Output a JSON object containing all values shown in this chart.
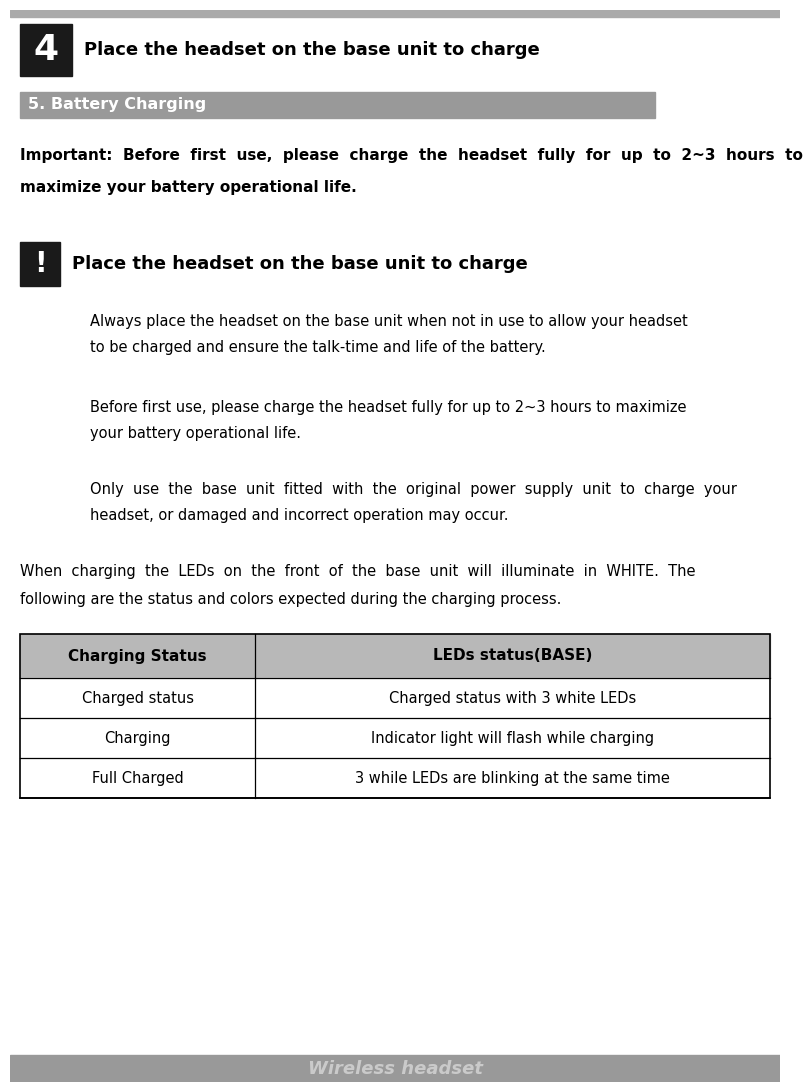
{
  "page_bg": "#ffffff",
  "top_bar_color": "#aaaaaa",
  "step_num": "4",
  "step_num_bg": "#1a1a1a",
  "step_title": "Place the headset on the base unit to charge",
  "section_title": "5. Battery Charging",
  "section_title_bg": "#999999",
  "section_title_color": "#ffffff",
  "important_line1": "Important:  Before  first  use,  please  charge  the  headset  fully  for  up  to  2~3  hours  to",
  "important_line2": "maximize your battery operational life.",
  "warning_label": "!",
  "warning_title": "Place the headset on the base unit to charge",
  "warning_box_bg": "#1a1a1a",
  "para1_line1": "Always place the headset on the base unit when not in use to allow your headset",
  "para1_line2": "to be charged and ensure the talk-time and life of the battery.",
  "para2_line1": "Before first use, please charge the headset fully for up to 2~3 hours to maximize",
  "para2_line2": "your battery operational life.",
  "para3_line1": "Only  use  the  base  unit  fitted  with  the  original  power  supply  unit  to  charge  your",
  "para3_line2": "headset, or damaged and incorrect operation may occur.",
  "when_line1": "When  charging  the  LEDs  on  the  front  of  the  base  unit  will  illuminate  in  WHITE.  The",
  "when_line2": "following are the status and colors expected during the charging process.",
  "table_header_col1": "Charging Status",
  "table_header_col2": "LEDs status(BASE)",
  "table_rows": [
    [
      "Charged status",
      "Charged status with 3 white LEDs"
    ],
    [
      "Charging",
      "Indicator light will flash while charging"
    ],
    [
      "Full Charged",
      "3 while LEDs are blinking at the same time"
    ]
  ],
  "footer_text": "Wireless headset",
  "footer_bar_color": "#999999",
  "footer_text_color": "#d0d0d0"
}
